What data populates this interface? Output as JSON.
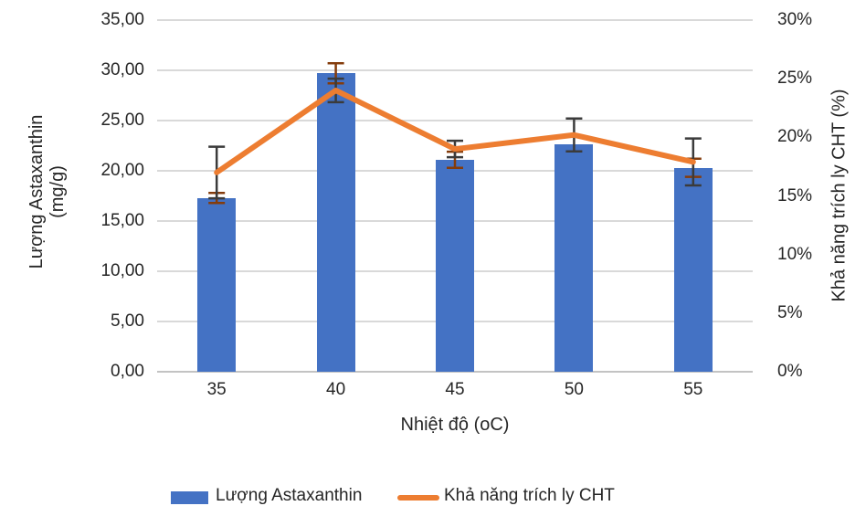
{
  "chart_data": {
    "type": "combo-bar-line",
    "categories": [
      "35",
      "40",
      "45",
      "50",
      "55"
    ],
    "series": [
      {
        "name": "Lượng Astaxanthin",
        "type": "bar",
        "axis": "left",
        "values": [
          17.3,
          29.7,
          21.1,
          22.6,
          20.3
        ],
        "errors": [
          0.5,
          1.0,
          0.8,
          null,
          0.9
        ],
        "color": "#4472C4",
        "error_color": "#843C0C"
      },
      {
        "name": "Khả năng trích ly CHT",
        "type": "line",
        "axis": "right",
        "values": [
          17.0,
          24.0,
          19.0,
          20.2,
          17.9
        ],
        "errors": [
          2.2,
          1.0,
          0.7,
          1.4,
          2.0
        ],
        "color": "#ED7D31",
        "error_color": "#3B3B3B"
      }
    ],
    "left_axis": {
      "title_lines": [
        "Lượng Astaxanthin",
        "(mg/g)"
      ],
      "min": 0,
      "max": 35,
      "step": 5,
      "tick_labels": [
        "0,00",
        "5,00",
        "10,00",
        "15,00",
        "20,00",
        "25,00",
        "30,00",
        "35,00"
      ]
    },
    "right_axis": {
      "title": "Khả năng trích ly CHT (%)",
      "min": 0,
      "max": 30,
      "step": 5,
      "tick_labels": [
        "0%",
        "5%",
        "10%",
        "15%",
        "20%",
        "25%",
        "30%"
      ]
    },
    "x_axis": {
      "title": "Nhiệt độ (oC)"
    },
    "legend": {
      "position": "bottom"
    },
    "grid": {
      "color": "#D9D9D9",
      "shown": true
    }
  }
}
